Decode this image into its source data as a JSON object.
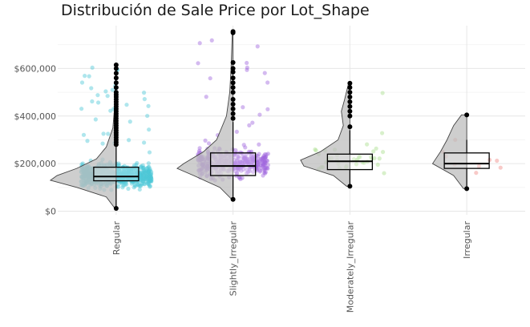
{
  "title": "Distribución de Sale Price por Lot_Shape",
  "chart_data": {
    "type": "box",
    "title": "Distribución de Sale Price por Lot_Shape",
    "xlabel": "",
    "ylabel": "",
    "ylim": [
      -15000,
      780000
    ],
    "y_ticks": [
      0,
      200000,
      400000,
      600000
    ],
    "y_tick_labels": [
      "$0",
      "$200,000",
      "$400,000",
      "$600,000"
    ],
    "categories": [
      "Regular",
      "Slightly_Irregular",
      "Moderately_Irregular",
      "Irregular"
    ],
    "grid": true,
    "legend": "none",
    "colors": {
      "Regular": "#4dc8d6",
      "Slightly_Irregular": "#a066de",
      "Moderately_Irregular": "#a8de8c",
      "Irregular": "#f08a84",
      "violin_fill": "#bdbdbd",
      "box_stroke": "#000000",
      "outlier": "#000000"
    },
    "boxes": [
      {
        "category": "Regular",
        "min": 12000,
        "q1": 128000,
        "median": 146000,
        "q3": 185000,
        "max": 270000,
        "outliers": [
          280000,
          290000,
          300000,
          310000,
          320000,
          330000,
          340000,
          350000,
          360000,
          370000,
          380000,
          390000,
          400000,
          410000,
          420000,
          430000,
          440000,
          450000,
          460000,
          470000,
          480000,
          490000,
          500000,
          520000,
          540000,
          560000,
          580000,
          600000,
          615000
        ]
      },
      {
        "category": "Slightly_Irregular",
        "min": 50000,
        "q1": 150000,
        "median": 190000,
        "q3": 245000,
        "max": 375000,
        "outliers": [
          390000,
          410000,
          430000,
          450000,
          470000,
          500000,
          520000,
          540000,
          560000,
          585000,
          600000,
          625000,
          750000,
          755000
        ]
      },
      {
        "category": "Moderately_Irregular",
        "min": 105000,
        "q1": 175000,
        "median": 210000,
        "q3": 240000,
        "max": 340000,
        "outliers": [
          355000,
          400000,
          420000,
          440000,
          460000,
          480000,
          500000,
          520000,
          538000
        ]
      },
      {
        "category": "Irregular",
        "min": 95000,
        "q1": 180000,
        "median": 200000,
        "q3": 245000,
        "max": 300000,
        "outliers": [
          405000
        ]
      }
    ],
    "violins": [
      {
        "category": "Regular",
        "profile": [
          [
            12000,
            0.02
          ],
          [
            60000,
            0.15
          ],
          [
            100000,
            0.6
          ],
          [
            130000,
            1.0
          ],
          [
            150000,
            0.9
          ],
          [
            180000,
            0.6
          ],
          [
            220000,
            0.3
          ],
          [
            270000,
            0.15
          ],
          [
            350000,
            0.05
          ],
          [
            450000,
            0.02
          ],
          [
            615000,
            0.01
          ]
        ]
      },
      {
        "category": "Slightly_Irregular",
        "profile": [
          [
            50000,
            0.02
          ],
          [
            100000,
            0.2
          ],
          [
            150000,
            0.6
          ],
          [
            180000,
            0.85
          ],
          [
            200000,
            0.75
          ],
          [
            250000,
            0.45
          ],
          [
            300000,
            0.25
          ],
          [
            400000,
            0.1
          ],
          [
            500000,
            0.05
          ],
          [
            600000,
            0.03
          ],
          [
            755000,
            0.01
          ]
        ]
      },
      {
        "category": "Moderately_Irregular",
        "profile": [
          [
            105000,
            0.05
          ],
          [
            150000,
            0.25
          ],
          [
            190000,
            0.7
          ],
          [
            215000,
            0.75
          ],
          [
            250000,
            0.45
          ],
          [
            300000,
            0.18
          ],
          [
            360000,
            0.1
          ],
          [
            420000,
            0.13
          ],
          [
            470000,
            0.08
          ],
          [
            538000,
            0.02
          ]
        ]
      },
      {
        "category": "Irregular",
        "profile": [
          [
            95000,
            0.05
          ],
          [
            150000,
            0.2
          ],
          [
            200000,
            0.52
          ],
          [
            250000,
            0.4
          ],
          [
            300000,
            0.3
          ],
          [
            360000,
            0.2
          ],
          [
            405000,
            0.08
          ]
        ]
      }
    ],
    "jitter_points": [
      {
        "category": "Regular",
        "n": 720,
        "center": 150000,
        "spread": 58000,
        "max": 615000
      },
      {
        "category": "Slightly_Irregular",
        "n": 420,
        "center": 205000,
        "spread": 75000,
        "max": 755000
      },
      {
        "category": "Moderately_Irregular",
        "n": 40,
        "center": 215000,
        "spread": 70000,
        "max": 540000
      },
      {
        "category": "Irregular",
        "n": 9,
        "center": 210000,
        "spread": 80000,
        "max": 405000
      }
    ]
  }
}
